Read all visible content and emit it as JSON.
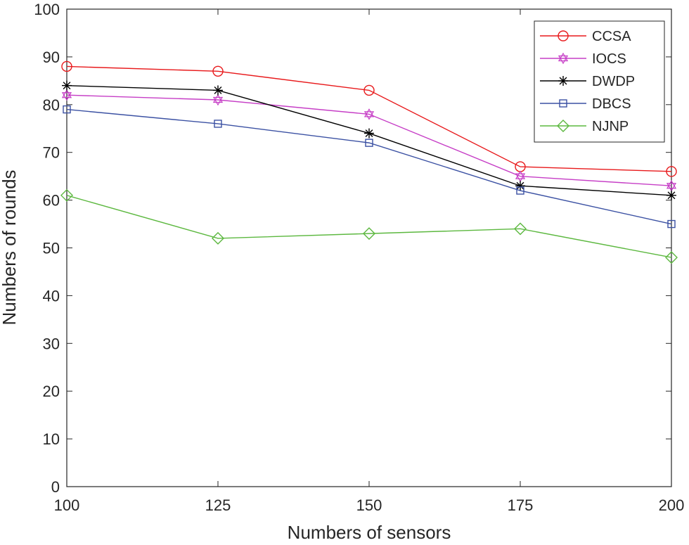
{
  "chart_data": {
    "type": "line",
    "title": "",
    "xlabel": "Numbers of sensors",
    "ylabel": "Numbers of rounds",
    "x": [
      100,
      125,
      150,
      175,
      200
    ],
    "xlim": [
      100,
      200
    ],
    "ylim": [
      0,
      100
    ],
    "xticks": [
      "100",
      "125",
      "150",
      "175",
      "200"
    ],
    "yticks": [
      "0",
      "10",
      "20",
      "30",
      "40",
      "50",
      "60",
      "70",
      "80",
      "90",
      "100"
    ],
    "grid": false,
    "legend_position": "top-right",
    "series": [
      {
        "name": "CCSA",
        "color": "#e8191b",
        "marker": "circle",
        "values": [
          88,
          87,
          83,
          67,
          66
        ]
      },
      {
        "name": "IOCS",
        "color": "#c63ec6",
        "marker": "hexagram",
        "values": [
          82,
          81,
          78,
          65,
          63
        ]
      },
      {
        "name": "DWDP",
        "color": "#000000",
        "marker": "asterisk",
        "values": [
          84,
          83,
          74,
          63,
          61
        ]
      },
      {
        "name": "DBCS",
        "color": "#3b51a3",
        "marker": "square",
        "values": [
          79,
          76,
          72,
          62,
          55
        ]
      },
      {
        "name": "NJNP",
        "color": "#5cb83f",
        "marker": "diamond",
        "values": [
          61,
          52,
          53,
          54,
          48
        ]
      }
    ]
  }
}
